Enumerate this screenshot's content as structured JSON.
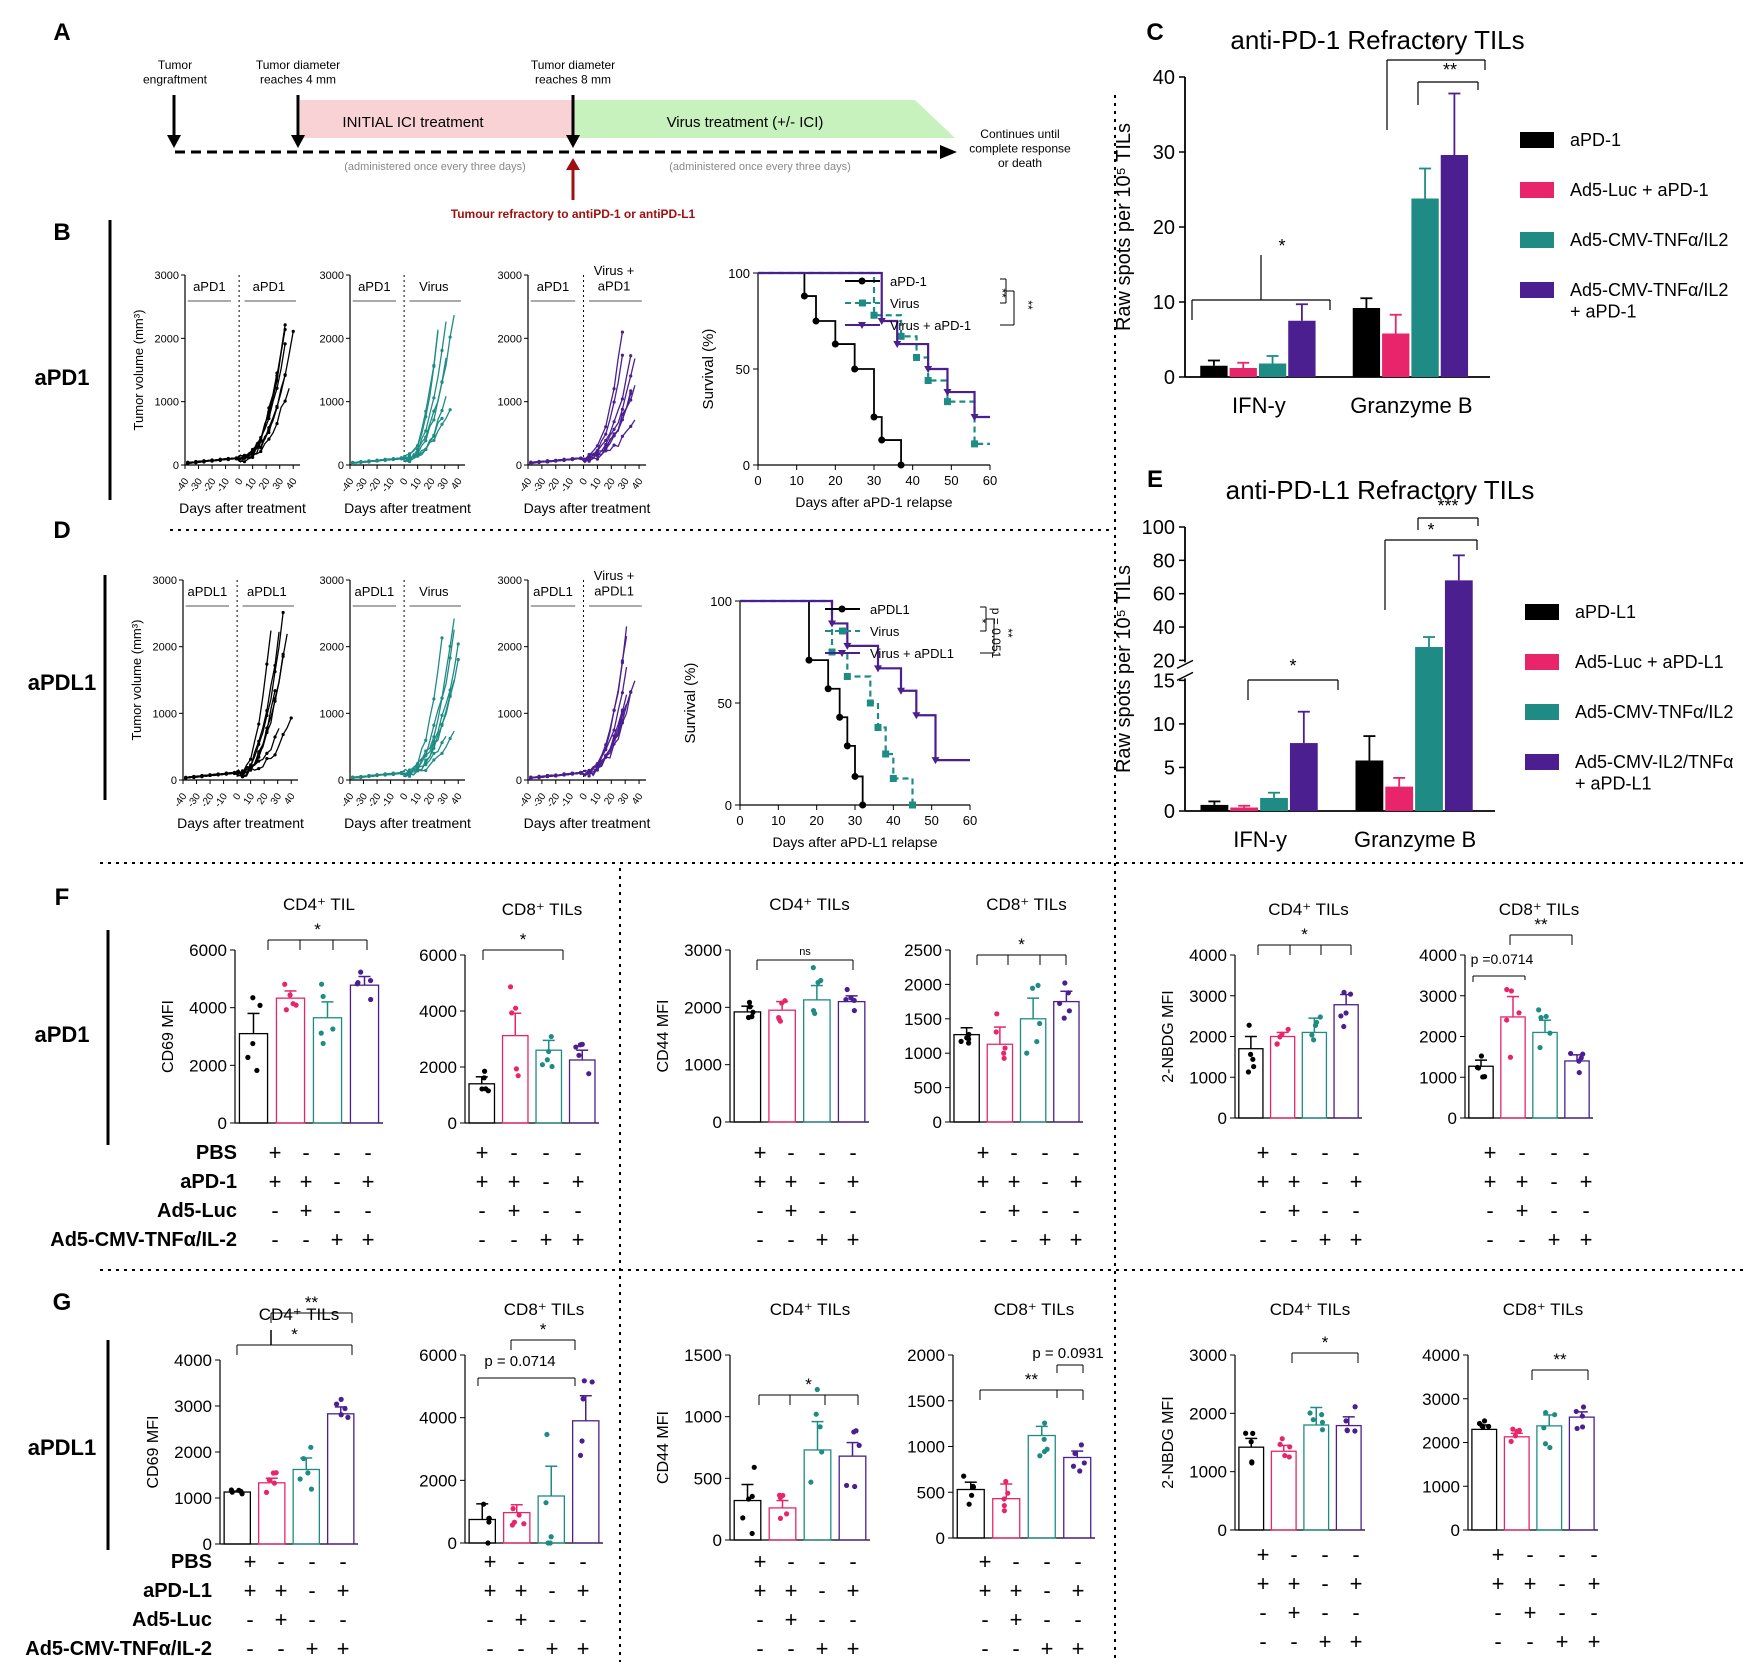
{
  "colors": {
    "black": "#000000",
    "pink": "#e8256a",
    "teal": "#1e8c85",
    "purple": "#4b1f8f",
    "red": "#a01010",
    "pink_bg": "#f9d2d6",
    "green_bg": "#c7f2bd"
  },
  "panel_letters": {
    "A": "A",
    "B": "B",
    "C": "C",
    "D": "D",
    "E": "E",
    "F": "F",
    "G": "G"
  },
  "row_labels": {
    "b": "aPD1",
    "d": "aPDL1",
    "f": "aPD1",
    "g": "aPDL1"
  },
  "timeline": {
    "tumor_engraftment": "Tumor\nengraftment",
    "diam4": "Tumor diameter\nreaches 4 mm",
    "diam8": "Tumor diameter\nreaches 8 mm",
    "initial": "INITIAL ICI treatment",
    "virus": "Virus treatment (+/- ICI)",
    "admin1": "(administered once every three days)",
    "admin2": "(administered once every three days)",
    "continues": "Continues until\ncomplete response\nor death",
    "refractory": "Tumour refractory to antiPD-1 or antiPD-L1"
  },
  "spaghetti": {
    "ylabel": "Tumor volume (mm³)",
    "xlabel": "Days after treatment",
    "yticks": [
      "0",
      "1000",
      "2000",
      "3000"
    ],
    "xticks": [
      "-40",
      "-30",
      "-20",
      "-10",
      "0",
      "10",
      "20",
      "30",
      "40"
    ],
    "B": [
      {
        "bars": [
          "aPD1",
          "aPD1"
        ]
      },
      {
        "bars": [
          "aPD1",
          "Virus"
        ]
      },
      {
        "bars": [
          "aPD1",
          "Virus +\naPD1"
        ]
      }
    ],
    "D": [
      {
        "bars": [
          "aPDL1",
          "aPDL1"
        ]
      },
      {
        "bars": [
          "aPDL1",
          "Virus"
        ]
      },
      {
        "bars": [
          "aPDL1",
          "Virus +\naPDL1"
        ]
      }
    ]
  },
  "survival": {
    "ylabel": "Survival (%)",
    "B": {
      "xlabel": "Days after aPD-1 relapse",
      "legend": [
        "aPD-1",
        "Virus",
        "Virus + aPD-1"
      ],
      "sig": [
        "**",
        "**"
      ],
      "series": [
        {
          "name": "aPD-1",
          "points": [
            [
              0,
              100
            ],
            [
              12,
              100
            ],
            [
              12,
              88
            ],
            [
              15,
              88
            ],
            [
              15,
              75
            ],
            [
              20,
              75
            ],
            [
              20,
              63
            ],
            [
              25,
              63
            ],
            [
              25,
              50
            ],
            [
              30,
              50
            ],
            [
              30,
              25
            ],
            [
              32,
              25
            ],
            [
              32,
              13
            ],
            [
              37,
              13
            ],
            [
              37,
              0
            ]
          ]
        },
        {
          "name": "Virus",
          "points": [
            [
              0,
              100
            ],
            [
              30,
              100
            ],
            [
              30,
              78
            ],
            [
              37,
              78
            ],
            [
              37,
              67
            ],
            [
              41,
              67
            ],
            [
              41,
              56
            ],
            [
              44,
              56
            ],
            [
              44,
              44
            ],
            [
              49,
              44
            ],
            [
              49,
              33
            ],
            [
              56,
              33
            ],
            [
              56,
              11
            ],
            [
              60,
              11
            ]
          ]
        },
        {
          "name": "Virus + aPD-1",
          "points": [
            [
              0,
              100
            ],
            [
              32,
              100
            ],
            [
              32,
              75
            ],
            [
              36,
              75
            ],
            [
              36,
              63
            ],
            [
              44,
              63
            ],
            [
              44,
              50
            ],
            [
              49,
              50
            ],
            [
              49,
              38
            ],
            [
              56,
              38
            ],
            [
              56,
              25
            ],
            [
              60,
              25
            ]
          ]
        }
      ]
    },
    "D": {
      "xlabel": "Days after aPD-L1 relapse",
      "legend": [
        "aPDL1",
        "Virus",
        "Virus + aPDL1"
      ],
      "sig": [
        "*",
        "**"
      ],
      "p": "p = 0.051",
      "series": [
        {
          "name": "aPDL1",
          "points": [
            [
              0,
              100
            ],
            [
              18,
              100
            ],
            [
              18,
              71
            ],
            [
              23,
              71
            ],
            [
              23,
              57
            ],
            [
              26,
              57
            ],
            [
              26,
              43
            ],
            [
              28,
              43
            ],
            [
              28,
              29
            ],
            [
              30,
              29
            ],
            [
              30,
              14
            ],
            [
              32,
              14
            ],
            [
              32,
              0
            ]
          ]
        },
        {
          "name": "Virus",
          "points": [
            [
              0,
              100
            ],
            [
              24,
              100
            ],
            [
              24,
              75
            ],
            [
              28,
              75
            ],
            [
              28,
              63
            ],
            [
              34,
              63
            ],
            [
              34,
              50
            ],
            [
              36,
              50
            ],
            [
              36,
              38
            ],
            [
              38,
              38
            ],
            [
              38,
              25
            ],
            [
              40,
              25
            ],
            [
              40,
              13
            ],
            [
              45,
              13
            ],
            [
              45,
              0
            ]
          ]
        },
        {
          "name": "Virus + aPDL1",
          "points": [
            [
              0,
              100
            ],
            [
              24,
              100
            ],
            [
              24,
              89
            ],
            [
              28,
              89
            ],
            [
              28,
              78
            ],
            [
              36,
              78
            ],
            [
              36,
              67
            ],
            [
              42,
              67
            ],
            [
              42,
              56
            ],
            [
              46,
              56
            ],
            [
              46,
              44
            ],
            [
              51,
              44
            ],
            [
              51,
              22
            ],
            [
              60,
              22
            ]
          ]
        }
      ]
    },
    "xticks": [
      "0",
      "10",
      "20",
      "30",
      "40",
      "50",
      "60"
    ],
    "yticks": [
      "0",
      "50",
      "100"
    ]
  },
  "chart_data": [
    {
      "type": "bar",
      "panel": "C",
      "title": "anti-PD-1 Refractory TILs",
      "ylabel": "Raw spots per 10⁵ TILs",
      "categories": [
        "IFN-y",
        "Granzyme B"
      ],
      "ylim": [
        0,
        40
      ],
      "yticks": [
        "0",
        "10",
        "20",
        "30",
        "40"
      ],
      "series": [
        {
          "name": "aPD-1",
          "values": [
            1.5,
            9.2
          ],
          "err": [
            0.7,
            1.3
          ]
        },
        {
          "name": "Ad5-Luc + aPD-1",
          "values": [
            1.2,
            5.8
          ],
          "err": [
            0.7,
            2.5
          ]
        },
        {
          "name": "Ad5-CMV-TNFα/IL2",
          "values": [
            1.8,
            23.8
          ],
          "err": [
            1.0,
            4.0
          ]
        },
        {
          "name": "Ad5-CMV-TNFα/IL2\n+ aPD-1",
          "values": [
            7.5,
            29.6
          ],
          "err": [
            2.2,
            8.2
          ]
        }
      ],
      "sig": [
        "*",
        "*",
        "**"
      ]
    },
    {
      "type": "bar",
      "panel": "E",
      "title": "anti-PD-L1 Refractory TILs",
      "ylabel": "Raw spots per 10⁵ TILs",
      "categories": [
        "IFN-y",
        "Granzyme B"
      ],
      "broken_axis": [
        15,
        20
      ],
      "yticks": [
        "0",
        "5",
        "10",
        "15",
        "20",
        "40",
        "60",
        "80",
        "100"
      ],
      "series": [
        {
          "name": "aPD-L1",
          "values": [
            0.7,
            5.8
          ],
          "err": [
            0.4,
            2.8
          ]
        },
        {
          "name": "Ad5-Luc + aPD-L1",
          "values": [
            0.4,
            2.8
          ],
          "err": [
            0.2,
            1.0
          ]
        },
        {
          "name": "Ad5-CMV-TNFα/IL2",
          "values": [
            1.5,
            28
          ],
          "err": [
            0.6,
            6
          ]
        },
        {
          "name": "Ad5-CMV-IL2/TNFα\n+ aPD-L1",
          "values": [
            7.8,
            68
          ],
          "err": [
            3.6,
            15
          ]
        }
      ],
      "sig": [
        "*",
        "*",
        "***"
      ]
    },
    {
      "type": "bar",
      "panel": "F1",
      "title": "CD4⁺ TIL",
      "ylabel": "CD69  MFI",
      "ylim": [
        0,
        6000
      ],
      "yticks": [
        "0",
        "2000",
        "4000",
        "6000"
      ],
      "values": [
        3100,
        4330,
        3650,
        4780
      ],
      "err": [
        700,
        250,
        550,
        300
      ],
      "sig": "*"
    },
    {
      "type": "bar",
      "panel": "F2",
      "title": "CD8⁺ TILs",
      "ylabel": "",
      "ylim": [
        0,
        6000
      ],
      "yticks": [
        "0",
        "2000",
        "4000",
        "6000"
      ],
      "values": [
        1400,
        3120,
        2600,
        2250
      ],
      "err": [
        250,
        800,
        350,
        350
      ],
      "sig": "*"
    },
    {
      "type": "bar",
      "panel": "F3",
      "title": "CD4⁺ TILs",
      "ylabel": "CD44 MFI",
      "ylim": [
        0,
        3000
      ],
      "yticks": [
        "0",
        "1000",
        "2000",
        "3000"
      ],
      "values": [
        1920,
        1950,
        2130,
        2100
      ],
      "err": [
        100,
        150,
        250,
        100
      ],
      "sig": "ns"
    },
    {
      "type": "bar",
      "panel": "F4",
      "title": "CD8⁺ TILs",
      "ylabel": "",
      "ylim": [
        0,
        2500
      ],
      "yticks": [
        "0",
        "500",
        "1000",
        "1500",
        "2000",
        "2500"
      ],
      "values": [
        1270,
        1130,
        1500,
        1750
      ],
      "err": [
        100,
        250,
        300,
        150
      ],
      "sig": "*"
    },
    {
      "type": "bar",
      "panel": "F5",
      "title": "CD4⁺ TILs",
      "ylabel": "2-NBDG MFI",
      "ylim": [
        0,
        4000
      ],
      "yticks": [
        "0",
        "1000",
        "2000",
        "3000",
        "4000"
      ],
      "values": [
        1700,
        2000,
        2100,
        2780
      ],
      "err": [
        300,
        100,
        350,
        250
      ],
      "sig": "*"
    },
    {
      "type": "bar",
      "panel": "F6",
      "title": "CD8⁺ TILs",
      "ylabel": "",
      "ylim": [
        0,
        4000
      ],
      "yticks": [
        "0",
        "1000",
        "2000",
        "3000",
        "4000"
      ],
      "values": [
        1270,
        2480,
        2100,
        1400
      ],
      "err": [
        150,
        500,
        300,
        150
      ],
      "sig": "**",
      "p": "p =0.0714"
    },
    {
      "type": "bar",
      "panel": "G1",
      "title": "CD4⁺ TILs",
      "ylabel": "CD69 MFI",
      "ylim": [
        0,
        4000
      ],
      "yticks": [
        "0",
        "1000",
        "2000",
        "3000",
        "4000"
      ],
      "values": [
        1130,
        1330,
        1620,
        2830
      ],
      "err": [
        20,
        100,
        250,
        150
      ],
      "sig": [
        "**",
        "*"
      ]
    },
    {
      "type": "bar",
      "panel": "G2",
      "title": "CD8⁺ TILs",
      "ylabel": "",
      "ylim": [
        0,
        6000
      ],
      "yticks": [
        "0",
        "2000",
        "4000",
        "6000"
      ],
      "values": [
        750,
        970,
        1500,
        3900
      ],
      "err": [
        500,
        250,
        950,
        800
      ],
      "sig": "*",
      "p": "p = 0.0714"
    },
    {
      "type": "bar",
      "panel": "G3",
      "title": "CD4⁺ TILs",
      "ylabel": "CD44 MFI",
      "ylim": [
        0,
        1500
      ],
      "yticks": [
        "0",
        "500",
        "1000",
        "1500"
      ],
      "values": [
        320,
        260,
        730,
        680
      ],
      "err": [
        130,
        60,
        230,
        110
      ],
      "sig": "*"
    },
    {
      "type": "bar",
      "panel": "G4",
      "title": "CD8⁺ TILs",
      "ylabel": "",
      "ylim": [
        0,
        2000
      ],
      "yticks": [
        "0",
        "500",
        "1000",
        "1500",
        "2000"
      ],
      "values": [
        530,
        430,
        1120,
        880
      ],
      "err": [
        80,
        160,
        100,
        70
      ],
      "sig": "**",
      "p": "p = 0.0931"
    },
    {
      "type": "bar",
      "panel": "G5",
      "title": "CD4⁺ TILs",
      "ylabel": "2-NBDG MFI",
      "ylim": [
        0,
        3000
      ],
      "yticks": [
        "0",
        "1000",
        "2000",
        "3000"
      ],
      "values": [
        1420,
        1350,
        1800,
        1790
      ],
      "err": [
        150,
        100,
        300,
        150
      ],
      "sig": "*"
    },
    {
      "type": "bar",
      "panel": "G6",
      "title": "CD8⁺ TILs",
      "ylabel": "",
      "ylim": [
        0,
        4000
      ],
      "yticks": [
        "0",
        "1000",
        "2000",
        "3000",
        "4000"
      ],
      "values": [
        2300,
        2130,
        2380,
        2580
      ],
      "err": [
        100,
        80,
        250,
        120
      ],
      "sig": "**"
    }
  ],
  "treatment_table": {
    "F_labels": [
      "PBS",
      "aPD-1",
      "Ad5-Luc",
      "Ad5-CMV-TNFα/IL-2"
    ],
    "G_labels": [
      "PBS",
      "aPD-L1",
      "Ad5-Luc",
      "Ad5-CMV-TNFα/IL-2"
    ],
    "signs": [
      [
        "+",
        "-",
        "-",
        "-"
      ],
      [
        "+",
        "+",
        "-",
        "+"
      ],
      [
        "-",
        "+",
        "-",
        "-"
      ],
      [
        "-",
        "-",
        "+",
        "+"
      ]
    ]
  }
}
